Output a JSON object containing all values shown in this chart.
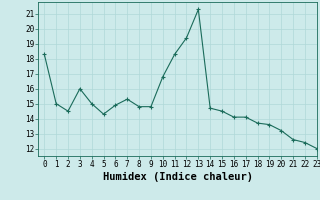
{
  "x": [
    0,
    1,
    2,
    3,
    4,
    5,
    6,
    7,
    8,
    9,
    10,
    11,
    12,
    13,
    14,
    15,
    16,
    17,
    18,
    19,
    20,
    21,
    22,
    23
  ],
  "y": [
    18.3,
    15.0,
    14.5,
    16.0,
    15.0,
    14.3,
    14.9,
    15.3,
    14.8,
    14.8,
    16.8,
    18.3,
    19.4,
    21.3,
    14.7,
    14.5,
    14.1,
    14.1,
    13.7,
    13.6,
    13.2,
    12.6,
    12.4,
    12.0
  ],
  "xlabel": "Humidex (Indice chaleur)",
  "ylim": [
    11.5,
    21.8
  ],
  "xlim": [
    -0.5,
    23
  ],
  "yticks": [
    12,
    13,
    14,
    15,
    16,
    17,
    18,
    19,
    20,
    21
  ],
  "xticks": [
    0,
    1,
    2,
    3,
    4,
    5,
    6,
    7,
    8,
    9,
    10,
    11,
    12,
    13,
    14,
    15,
    16,
    17,
    18,
    19,
    20,
    21,
    22,
    23
  ],
  "line_color": "#1a6b5a",
  "marker": "+",
  "bg_color": "#cdeaea",
  "grid_color": "#b0d8d8",
  "tick_label_fontsize": 5.5,
  "xlabel_fontsize": 7.5
}
